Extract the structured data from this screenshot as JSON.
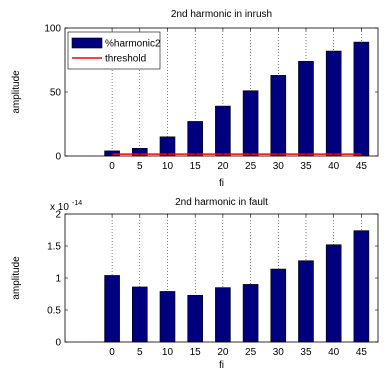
{
  "chart_data": [
    {
      "type": "bar",
      "title": "2nd harmonic in inrush",
      "xlabel": "fi",
      "ylabel": "amplitude",
      "categories": [
        "0",
        "5",
        "10",
        "15",
        "20",
        "25",
        "30",
        "35",
        "40",
        "45"
      ],
      "x": [
        0,
        5,
        10,
        15,
        20,
        25,
        30,
        35,
        40,
        45
      ],
      "xlim": [
        -8.5,
        48
      ],
      "ylim": [
        0,
        100
      ],
      "yticks": [
        0,
        50,
        100
      ],
      "series": [
        {
          "name": "%harmonic2",
          "type": "bar",
          "color": "#00007f",
          "values": [
            4,
            6,
            15,
            27,
            39,
            51,
            63,
            74,
            82,
            89
          ]
        },
        {
          "name": "threshold",
          "type": "line",
          "color": "#ff0000",
          "values": [
            1.5,
            1.5,
            1.5,
            1.5,
            1.5,
            1.5,
            1.5,
            1.5,
            1.5,
            1.5
          ]
        }
      ],
      "grid": "x",
      "legend": "top-left"
    },
    {
      "type": "bar",
      "title": "2nd harmonic in fault",
      "xlabel": "fi",
      "ylabel": "amplitude",
      "exponent_label": "x 10",
      "exponent": "-14",
      "categories": [
        "0",
        "5",
        "10",
        "15",
        "20",
        "25",
        "30",
        "35",
        "40",
        "45"
      ],
      "x": [
        0,
        5,
        10,
        15,
        20,
        25,
        30,
        35,
        40,
        45
      ],
      "xlim": [
        -8.5,
        48
      ],
      "ylim": [
        0,
        2
      ],
      "yticks": [
        0,
        0.5,
        1,
        1.5,
        2
      ],
      "ytick_labels": [
        "0",
        "0.5",
        "1",
        "1.5",
        "2"
      ],
      "series": [
        {
          "name": "",
          "type": "bar",
          "color": "#00007f",
          "values": [
            1.04,
            0.86,
            0.79,
            0.73,
            0.85,
            0.9,
            1.14,
            1.27,
            1.52,
            1.74
          ]
        }
      ],
      "grid": "x",
      "legend": "none"
    }
  ]
}
